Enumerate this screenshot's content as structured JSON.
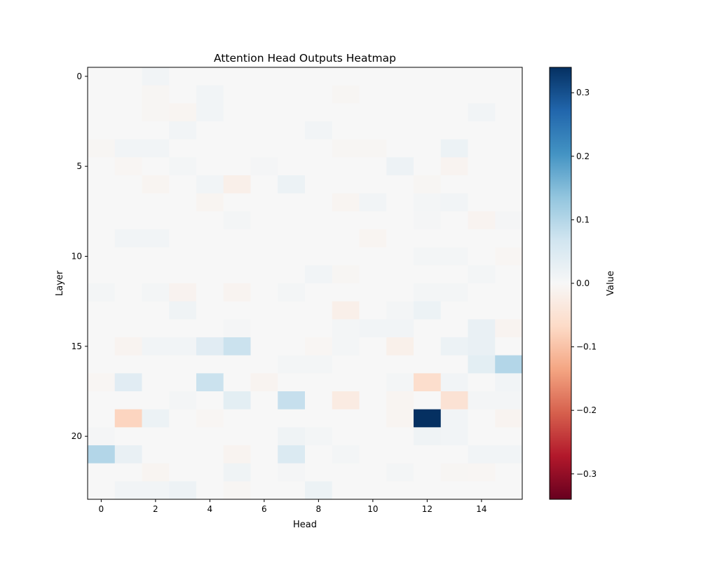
{
  "chart_data": {
    "type": "heatmap",
    "title": "Attention Head Outputs Heatmap",
    "xlabel": "Head",
    "ylabel": "Layer",
    "colorbar_label": "Value",
    "colormap": "RdBu",
    "vlim": [
      -0.34,
      0.34
    ],
    "rows": 24,
    "cols": 16,
    "x_ticks": [
      0,
      2,
      4,
      6,
      8,
      10,
      12,
      14
    ],
    "y_ticks": [
      0,
      5,
      10,
      15,
      20
    ],
    "colorbar_ticks": [
      -0.3,
      -0.2,
      -0.1,
      0.0,
      0.1,
      0.2,
      0.3
    ],
    "colorbar_tick_labels": [
      "−0.3",
      "−0.2",
      "−0.1",
      "0.0",
      "0.1",
      "0.2",
      "0.3"
    ],
    "background_value": 0.0,
    "cells": [
      {
        "layer": 0,
        "head": 2,
        "value": 0.01
      },
      {
        "layer": 1,
        "head": 4,
        "value": 0.01
      },
      {
        "layer": 1,
        "head": 2,
        "value": -0.005
      },
      {
        "layer": 1,
        "head": 9,
        "value": -0.005
      },
      {
        "layer": 2,
        "head": 2,
        "value": -0.005
      },
      {
        "layer": 2,
        "head": 3,
        "value": -0.008
      },
      {
        "layer": 2,
        "head": 4,
        "value": 0.01
      },
      {
        "layer": 2,
        "head": 14,
        "value": 0.01
      },
      {
        "layer": 3,
        "head": 3,
        "value": 0.01
      },
      {
        "layer": 3,
        "head": 8,
        "value": 0.01
      },
      {
        "layer": 4,
        "head": 0,
        "value": -0.005
      },
      {
        "layer": 4,
        "head": 1,
        "value": 0.01
      },
      {
        "layer": 4,
        "head": 2,
        "value": 0.01
      },
      {
        "layer": 4,
        "head": 9,
        "value": -0.005
      },
      {
        "layer": 4,
        "head": 10,
        "value": -0.005
      },
      {
        "layer": 4,
        "head": 13,
        "value": 0.02
      },
      {
        "layer": 5,
        "head": 1,
        "value": -0.006
      },
      {
        "layer": 5,
        "head": 3,
        "value": 0.008
      },
      {
        "layer": 5,
        "head": 6,
        "value": 0.006
      },
      {
        "layer": 5,
        "head": 11,
        "value": 0.018
      },
      {
        "layer": 5,
        "head": 13,
        "value": -0.01
      },
      {
        "layer": 6,
        "head": 2,
        "value": -0.008
      },
      {
        "layer": 6,
        "head": 4,
        "value": 0.01
      },
      {
        "layer": 6,
        "head": 5,
        "value": -0.02
      },
      {
        "layer": 6,
        "head": 7,
        "value": 0.02
      },
      {
        "layer": 6,
        "head": 12,
        "value": -0.005
      },
      {
        "layer": 7,
        "head": 4,
        "value": -0.008
      },
      {
        "layer": 7,
        "head": 9,
        "value": -0.008
      },
      {
        "layer": 7,
        "head": 10,
        "value": 0.01
      },
      {
        "layer": 7,
        "head": 12,
        "value": 0.008
      },
      {
        "layer": 7,
        "head": 13,
        "value": 0.01
      },
      {
        "layer": 8,
        "head": 5,
        "value": 0.008
      },
      {
        "layer": 8,
        "head": 12,
        "value": 0.006
      },
      {
        "layer": 8,
        "head": 14,
        "value": -0.01
      },
      {
        "layer": 8,
        "head": 15,
        "value": 0.006
      },
      {
        "layer": 9,
        "head": 1,
        "value": 0.01
      },
      {
        "layer": 9,
        "head": 2,
        "value": 0.01
      },
      {
        "layer": 9,
        "head": 10,
        "value": -0.008
      },
      {
        "layer": 10,
        "head": 12,
        "value": 0.008
      },
      {
        "layer": 10,
        "head": 13,
        "value": 0.008
      },
      {
        "layer": 10,
        "head": 15,
        "value": -0.006
      },
      {
        "layer": 11,
        "head": 8,
        "value": 0.01
      },
      {
        "layer": 11,
        "head": 9,
        "value": -0.005
      },
      {
        "layer": 11,
        "head": 14,
        "value": 0.008
      },
      {
        "layer": 12,
        "head": 0,
        "value": 0.008
      },
      {
        "layer": 12,
        "head": 2,
        "value": 0.008
      },
      {
        "layer": 12,
        "head": 3,
        "value": -0.012
      },
      {
        "layer": 12,
        "head": 5,
        "value": -0.01
      },
      {
        "layer": 12,
        "head": 7,
        "value": 0.008
      },
      {
        "layer": 12,
        "head": 12,
        "value": 0.008
      },
      {
        "layer": 12,
        "head": 13,
        "value": 0.008
      },
      {
        "layer": 13,
        "head": 3,
        "value": 0.015
      },
      {
        "layer": 13,
        "head": 9,
        "value": -0.02
      },
      {
        "layer": 13,
        "head": 11,
        "value": 0.008
      },
      {
        "layer": 13,
        "head": 12,
        "value": 0.02
      },
      {
        "layer": 14,
        "head": 5,
        "value": 0.006
      },
      {
        "layer": 14,
        "head": 9,
        "value": 0.008
      },
      {
        "layer": 14,
        "head": 10,
        "value": 0.01
      },
      {
        "layer": 14,
        "head": 11,
        "value": 0.01
      },
      {
        "layer": 14,
        "head": 14,
        "value": 0.025
      },
      {
        "layer": 14,
        "head": 15,
        "value": -0.01
      },
      {
        "layer": 15,
        "head": 1,
        "value": -0.01
      },
      {
        "layer": 15,
        "head": 2,
        "value": 0.01
      },
      {
        "layer": 15,
        "head": 3,
        "value": 0.01
      },
      {
        "layer": 15,
        "head": 4,
        "value": 0.04
      },
      {
        "layer": 15,
        "head": 5,
        "value": 0.075
      },
      {
        "layer": 15,
        "head": 8,
        "value": -0.006
      },
      {
        "layer": 15,
        "head": 9,
        "value": 0.008
      },
      {
        "layer": 15,
        "head": 11,
        "value": -0.018
      },
      {
        "layer": 15,
        "head": 13,
        "value": 0.02
      },
      {
        "layer": 15,
        "head": 14,
        "value": 0.025
      },
      {
        "layer": 16,
        "head": 7,
        "value": 0.008
      },
      {
        "layer": 16,
        "head": 8,
        "value": 0.008
      },
      {
        "layer": 16,
        "head": 14,
        "value": 0.035
      },
      {
        "layer": 16,
        "head": 15,
        "value": 0.1
      },
      {
        "layer": 17,
        "head": 0,
        "value": -0.006
      },
      {
        "layer": 17,
        "head": 1,
        "value": 0.04
      },
      {
        "layer": 17,
        "head": 4,
        "value": 0.075
      },
      {
        "layer": 17,
        "head": 6,
        "value": -0.01
      },
      {
        "layer": 17,
        "head": 11,
        "value": 0.008
      },
      {
        "layer": 17,
        "head": 12,
        "value": -0.06
      },
      {
        "layer": 17,
        "head": 13,
        "value": 0.01
      },
      {
        "layer": 17,
        "head": 15,
        "value": 0.01
      },
      {
        "layer": 18,
        "head": 3,
        "value": 0.008
      },
      {
        "layer": 18,
        "head": 5,
        "value": 0.035
      },
      {
        "layer": 18,
        "head": 7,
        "value": 0.08
      },
      {
        "layer": 18,
        "head": 9,
        "value": -0.03
      },
      {
        "layer": 18,
        "head": 11,
        "value": -0.008
      },
      {
        "layer": 18,
        "head": 13,
        "value": -0.05
      },
      {
        "layer": 18,
        "head": 14,
        "value": 0.008
      },
      {
        "layer": 18,
        "head": 15,
        "value": 0.008
      },
      {
        "layer": 19,
        "head": 1,
        "value": -0.075
      },
      {
        "layer": 19,
        "head": 2,
        "value": 0.02
      },
      {
        "layer": 19,
        "head": 4,
        "value": -0.006
      },
      {
        "layer": 19,
        "head": 11,
        "value": -0.008
      },
      {
        "layer": 19,
        "head": 12,
        "value": 0.34
      },
      {
        "layer": 19,
        "head": 13,
        "value": 0.01
      },
      {
        "layer": 19,
        "head": 15,
        "value": -0.01
      },
      {
        "layer": 20,
        "head": 0,
        "value": 0.006
      },
      {
        "layer": 20,
        "head": 7,
        "value": 0.015
      },
      {
        "layer": 20,
        "head": 8,
        "value": 0.008
      },
      {
        "layer": 20,
        "head": 12,
        "value": 0.015
      },
      {
        "layer": 20,
        "head": 13,
        "value": 0.01
      },
      {
        "layer": 21,
        "head": 0,
        "value": 0.1
      },
      {
        "layer": 21,
        "head": 1,
        "value": 0.025
      },
      {
        "layer": 21,
        "head": 5,
        "value": -0.01
      },
      {
        "layer": 21,
        "head": 7,
        "value": 0.05
      },
      {
        "layer": 21,
        "head": 9,
        "value": 0.008
      },
      {
        "layer": 21,
        "head": 14,
        "value": 0.01
      },
      {
        "layer": 21,
        "head": 15,
        "value": 0.01
      },
      {
        "layer": 22,
        "head": 2,
        "value": -0.008
      },
      {
        "layer": 22,
        "head": 5,
        "value": 0.015
      },
      {
        "layer": 22,
        "head": 7,
        "value": 0.006
      },
      {
        "layer": 22,
        "head": 11,
        "value": 0.008
      },
      {
        "layer": 22,
        "head": 13,
        "value": -0.005
      },
      {
        "layer": 22,
        "head": 14,
        "value": -0.006
      },
      {
        "layer": 23,
        "head": 1,
        "value": 0.01
      },
      {
        "layer": 23,
        "head": 2,
        "value": 0.01
      },
      {
        "layer": 23,
        "head": 3,
        "value": 0.018
      },
      {
        "layer": 23,
        "head": 5,
        "value": -0.005
      },
      {
        "layer": 23,
        "head": 8,
        "value": 0.02
      }
    ]
  }
}
